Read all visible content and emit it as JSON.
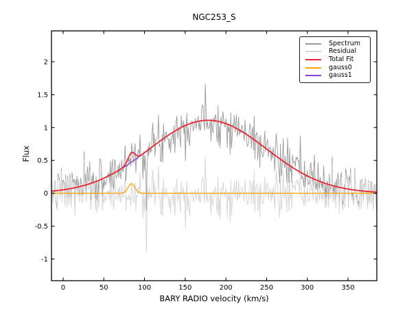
{
  "window": {
    "title": "NGC253_S",
    "background_color": "#ffffff"
  },
  "chart_data": {
    "type": "line",
    "title": "NGC253_S",
    "xlabel": "BARY RADIO velocity (km/s)",
    "ylabel": "Flux",
    "xlim": [
      -14.3,
      385.4
    ],
    "ylim": [
      -1.33,
      2.47
    ],
    "x_ticks": [
      0,
      50,
      100,
      150,
      200,
      250,
      300,
      350
    ],
    "y_ticks": [
      -1,
      -0.5,
      0,
      0.5,
      1,
      1.5,
      2
    ],
    "grid": false,
    "tick_direction": "in",
    "ticks_all_sides": true,
    "legend_position": "upper right",
    "axis_color": "#000000",
    "series": [
      {
        "name": "Spectrum",
        "color": "#9a9a9a",
        "type": "noisy_model",
        "description": "observed spectrum = total fit + gaussian noise",
        "noise_sigma": 0.17,
        "seed": 7,
        "n_points": 460,
        "peak_flux_approx": 1.55
      },
      {
        "name": "Residual",
        "color": "#d4d4d4",
        "type": "noise_only",
        "description": "residual = spectrum - total fit, centered on 0",
        "noise_sigma": 0.17,
        "seed": 7,
        "n_points": 460,
        "outlier": {
          "velocity": 102,
          "flux": -0.9
        }
      },
      {
        "name": "Total Fit",
        "color": "#e8262e",
        "type": "model_sum",
        "description": "sum of gauss0 and gauss1",
        "peak_flux": 1.12,
        "peak_velocity": 178
      },
      {
        "name": "gauss0",
        "color": "#ffa500",
        "type": "gaussian",
        "amplitude": 0.145,
        "center": 84,
        "sigma": 4.2
      },
      {
        "name": "gauss1",
        "color": "#8f3fd6",
        "type": "gaussian",
        "amplitude": 1.11,
        "center": 178,
        "sigma": 72
      }
    ],
    "draw_order": [
      "Spectrum",
      "Residual",
      "gauss0",
      "gauss1",
      "Total Fit"
    ],
    "legend_order": [
      "Spectrum",
      "Residual",
      "Total Fit",
      "gauss0",
      "gauss1"
    ]
  }
}
